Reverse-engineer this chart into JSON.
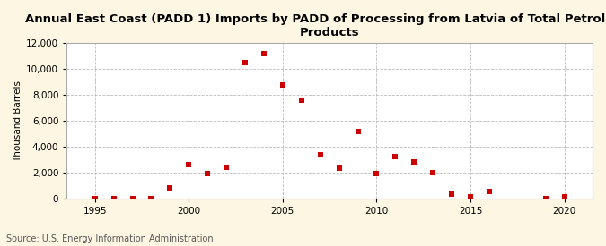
{
  "title": "Annual East Coast (PADD 1) Imports by PADD of Processing from Latvia of Total Petroleum\nProducts",
  "ylabel": "Thousand Barrels",
  "source": "Source: U.S. Energy Information Administration",
  "background_color": "#fdf6e3",
  "plot_bg_color": "#ffffff",
  "marker_color": "#cc0000",
  "marker": "s",
  "markersize": 4,
  "xlim": [
    1993.5,
    2021.5
  ],
  "ylim": [
    0,
    12000
  ],
  "yticks": [
    0,
    2000,
    4000,
    6000,
    8000,
    10000,
    12000
  ],
  "xticks": [
    1995,
    2000,
    2005,
    2010,
    2015,
    2020
  ],
  "data": {
    "1995": 0,
    "1996": 0,
    "1997": 0,
    "1998": 0,
    "1999": 800,
    "2000": 2600,
    "2001": 1900,
    "2002": 2400,
    "2003": 10500,
    "2004": 11200,
    "2005": 8800,
    "2006": 7600,
    "2007": 3400,
    "2008": 2300,
    "2009": 5200,
    "2010": 1900,
    "2011": 3250,
    "2012": 2800,
    "2013": 2000,
    "2014": 300,
    "2015": 100,
    "2016": 550,
    "2019": 0,
    "2020": 100
  },
  "title_fontsize": 9.5,
  "tick_fontsize": 7.5,
  "label_fontsize": 7.5,
  "source_fontsize": 7
}
